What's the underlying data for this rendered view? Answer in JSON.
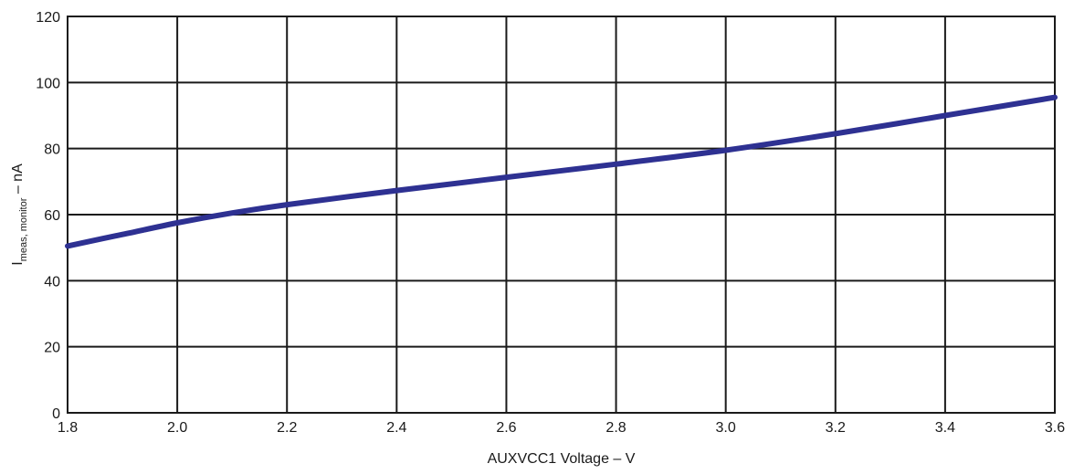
{
  "chart_data": {
    "type": "line",
    "title": "",
    "xlabel": "AUXVCC1 Voltage – V",
    "ylabel": {
      "main": "I",
      "subscript": "meas, monitor",
      "suffix": " – nA"
    },
    "xlim": [
      1.8,
      3.6
    ],
    "ylim": [
      0,
      120
    ],
    "x_ticks": [
      "1.8",
      "2.0",
      "2.2",
      "2.4",
      "2.6",
      "2.8",
      "3.0",
      "3.2",
      "3.4",
      "3.6"
    ],
    "y_ticks": [
      "0",
      "20",
      "40",
      "60",
      "80",
      "100",
      "120"
    ],
    "grid": true,
    "series": [
      {
        "color": "#2e3192",
        "x": [
          1.8,
          1.9,
          2.0,
          2.1,
          2.2,
          2.4,
          2.6,
          2.8,
          3.0,
          3.2,
          3.4,
          3.6
        ],
        "y": [
          50.5,
          54,
          57.5,
          60.5,
          63,
          67.3,
          71.3,
          75.3,
          79.5,
          84.5,
          90,
          95.5
        ]
      }
    ]
  }
}
